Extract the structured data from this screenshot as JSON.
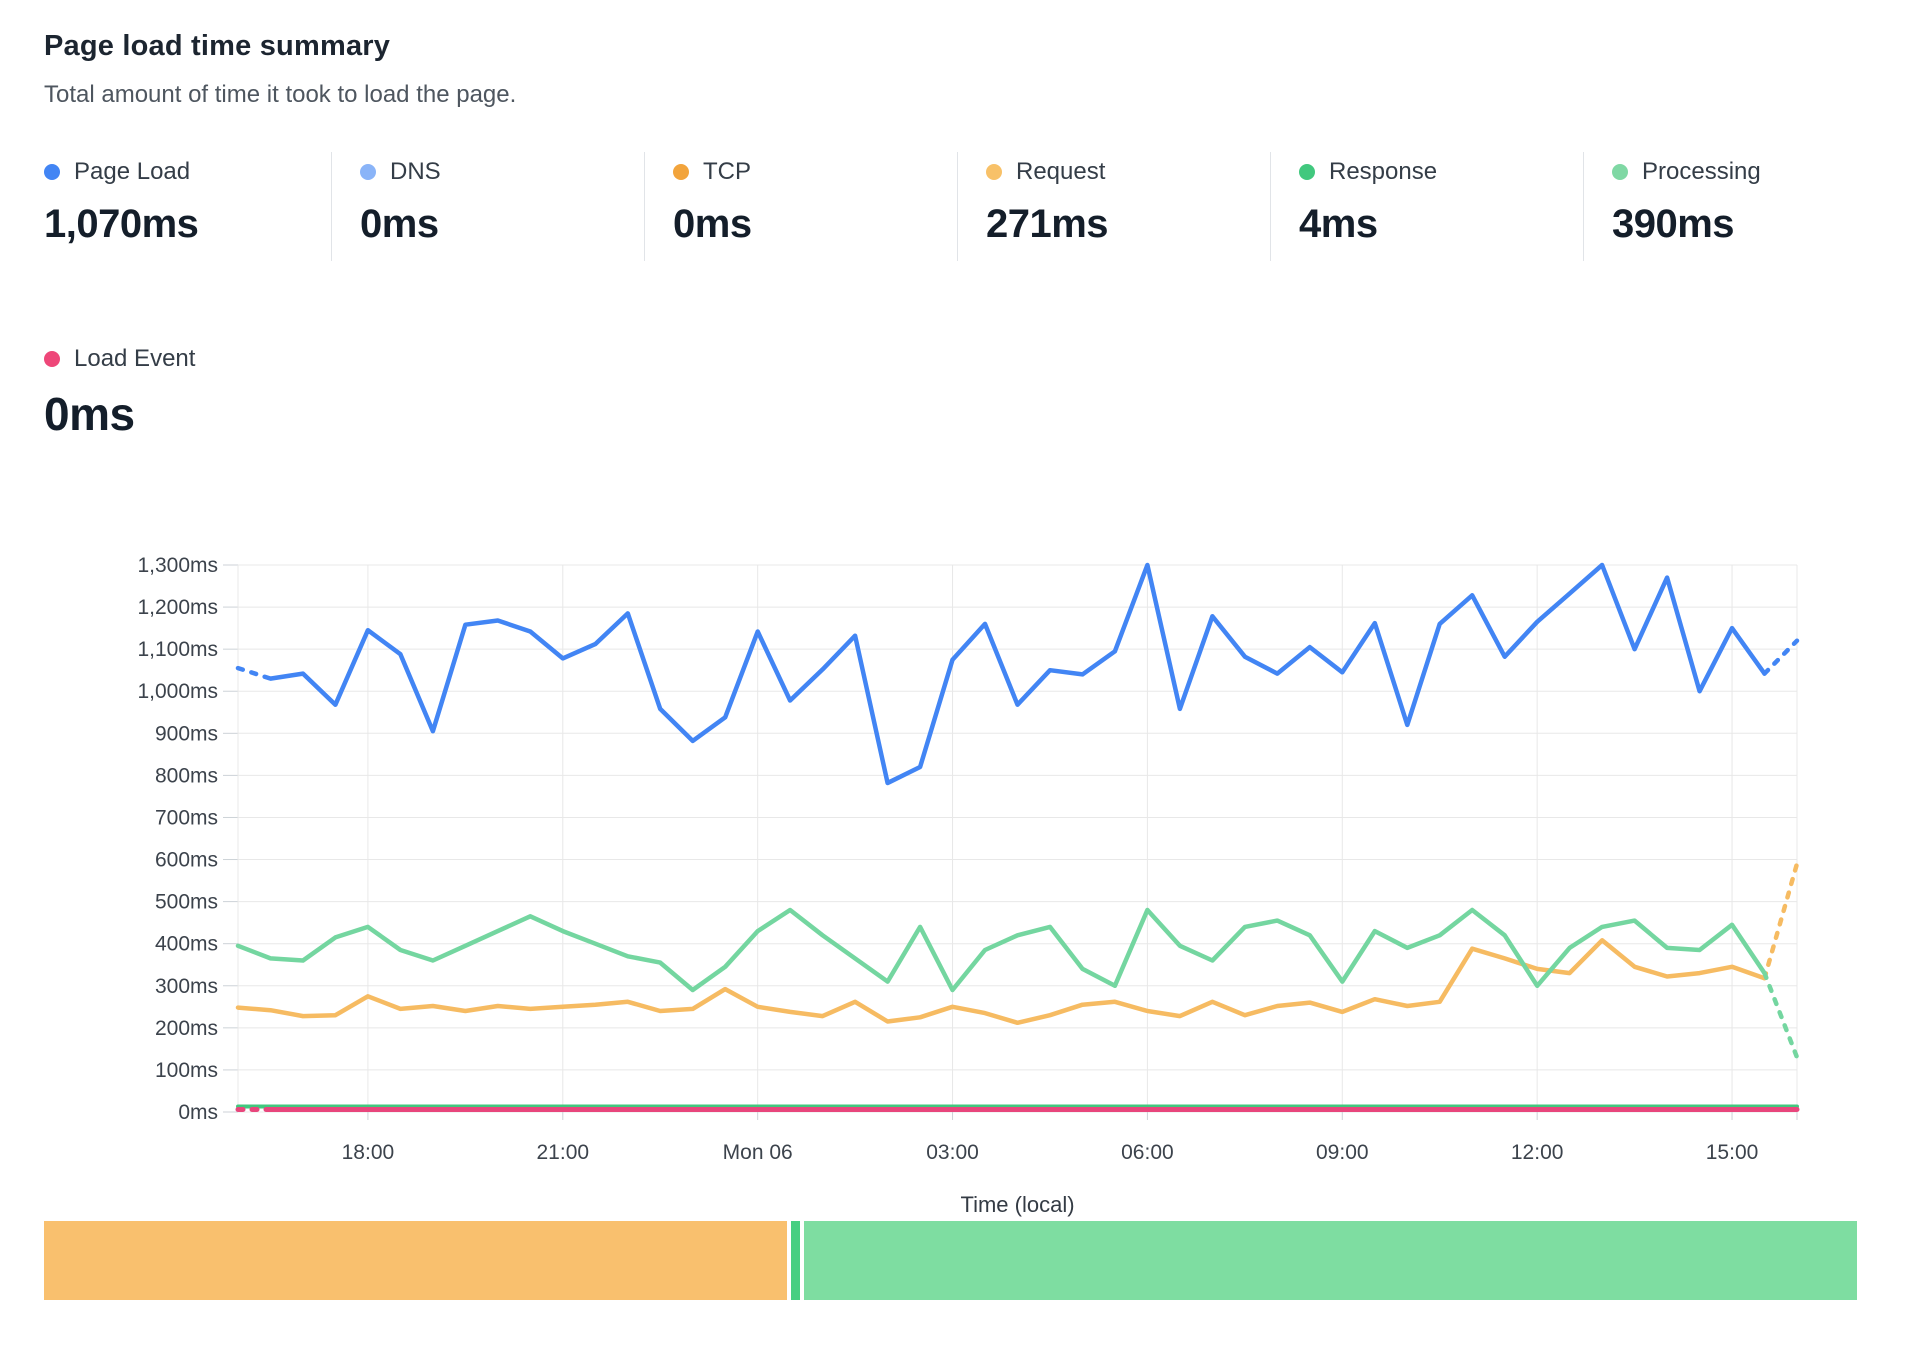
{
  "header": {
    "title": "Page load time summary",
    "subtitle": "Total amount of time it took to load the page."
  },
  "metrics": [
    {
      "label": "Page Load",
      "value": "1,070ms",
      "color": "#4285f4"
    },
    {
      "label": "DNS",
      "value": "0ms",
      "color": "#8ab4f8"
    },
    {
      "label": "TCP",
      "value": "0ms",
      "color": "#f2a43c"
    },
    {
      "label": "Request",
      "value": "271ms",
      "color": "#f8c168"
    },
    {
      "label": "Response",
      "value": "4ms",
      "color": "#41c87e"
    },
    {
      "label": "Processing",
      "value": "390ms",
      "color": "#7fd8a4"
    }
  ],
  "load_event": {
    "label": "Load Event",
    "value": "0ms",
    "color": "#ee4779"
  },
  "chart_data": {
    "type": "line",
    "title": "Page load time summary",
    "x_axis_label": "Time (local)",
    "y_unit": "ms",
    "y_min": 0,
    "y_max": 1300,
    "y_step": 100,
    "grid": true,
    "y_tick_labels": [
      "0ms",
      "100ms",
      "200ms",
      "300ms",
      "400ms",
      "500ms",
      "600ms",
      "700ms",
      "800ms",
      "900ms",
      "1,000ms",
      "1,100ms",
      "1,200ms",
      "1,300ms"
    ],
    "x_ticks": [
      {
        "label": "18:00",
        "i": 4
      },
      {
        "label": "21:00",
        "i": 10
      },
      {
        "label": "Mon 06",
        "i": 16
      },
      {
        "label": "03:00",
        "i": 22
      },
      {
        "label": "06:00",
        "i": 28
      },
      {
        "label": "09:00",
        "i": 34
      },
      {
        "label": "12:00",
        "i": 40
      },
      {
        "label": "15:00",
        "i": 46
      }
    ],
    "n_points": 49,
    "point_interval_minutes": 30,
    "series": [
      {
        "name": "Response",
        "color": "#41c87e",
        "flat": 13
      },
      {
        "name": "Load Event",
        "color": "#e8467c",
        "flat": 6,
        "dash_first": true
      },
      {
        "name": "Request",
        "color": "#f6bb62",
        "dash_last": true,
        "values": [
          248,
          242,
          228,
          230,
          275,
          245,
          252,
          240,
          252,
          245,
          250,
          255,
          262,
          240,
          245,
          292,
          250,
          238,
          228,
          262,
          215,
          225,
          250,
          235,
          212,
          230,
          255,
          262,
          240,
          228,
          262,
          230,
          252,
          260,
          238,
          268,
          252,
          262,
          388,
          365,
          340,
          330,
          408,
          345,
          322,
          330,
          345,
          318,
          590
        ]
      },
      {
        "name": "Processing",
        "color": "#74d6a0",
        "dash_last": true,
        "values": [
          395,
          365,
          360,
          415,
          440,
          385,
          360,
          395,
          430,
          465,
          430,
          400,
          370,
          355,
          290,
          345,
          430,
          480,
          420,
          365,
          310,
          440,
          290,
          385,
          420,
          440,
          340,
          300,
          480,
          395,
          360,
          440,
          455,
          420,
          310,
          430,
          390,
          420,
          480,
          420,
          300,
          390,
          440,
          455,
          390,
          385,
          445,
          330,
          130
        ]
      },
      {
        "name": "Page Load",
        "color": "#4285f4",
        "dash_first": true,
        "dash_last": true,
        "values": [
          1055,
          1030,
          1042,
          968,
          1145,
          1088,
          905,
          1158,
          1168,
          1142,
          1078,
          1112,
          1185,
          958,
          882,
          938,
          1142,
          978,
          1052,
          1132,
          782,
          820,
          1075,
          1160,
          968,
          1050,
          1040,
          1095,
          1300,
          958,
          1178,
          1082,
          1042,
          1105,
          1045,
          1162,
          920,
          1160,
          1228,
          1082,
          1165,
          1232,
          1300,
          1100,
          1270,
          1000,
          1150,
          1042,
          1120
        ]
      }
    ]
  },
  "bottom_bar": {
    "segments": [
      {
        "name": "Request",
        "color": "#f9c06e",
        "width": "40.98%"
      },
      {
        "name": "Response",
        "color": "#47cf82",
        "width": "0.5%"
      },
      {
        "name": "Processing",
        "color": "#7edda1",
        "width": "58.1%"
      }
    ]
  }
}
